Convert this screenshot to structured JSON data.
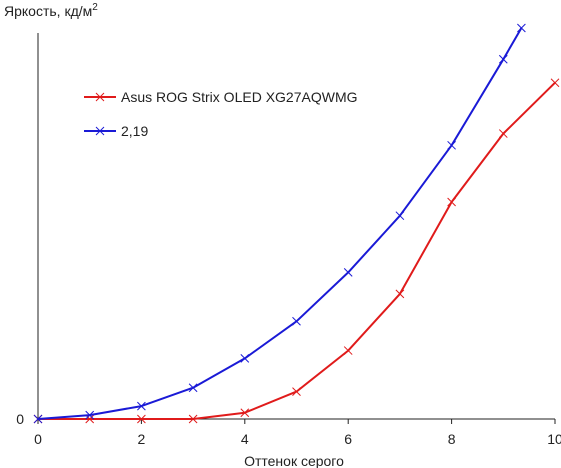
{
  "chart_data": {
    "type": "line",
    "title": "",
    "ylabel": "Яркость, кд/м",
    "ylabel_sup": "2",
    "xlabel": "Оттенок серого",
    "xlim": [
      0,
      10
    ],
    "ylim": [
      0,
      100
    ],
    "xticks": [
      "0",
      "2",
      "4",
      "6",
      "8",
      "10"
    ],
    "yticks": [
      "0"
    ],
    "grid": false,
    "legend_position": "top-left",
    "series": [
      {
        "name": "Asus ROG Strix OLED XG27AQWMG",
        "color": "#e01b1b",
        "x": [
          0,
          1,
          2,
          3,
          4,
          5,
          6,
          7,
          8,
          9,
          10
        ],
        "y": [
          0,
          0,
          0,
          0,
          1.6,
          7,
          17.5,
          32,
          55.5,
          73,
          86
        ]
      },
      {
        "name": "2,19",
        "color": "#1a1ad6",
        "x": [
          0,
          1,
          2,
          3,
          4,
          5,
          6,
          7,
          8,
          9,
          9.35
        ],
        "y": [
          0,
          1,
          3.3,
          8,
          15.5,
          25,
          37.5,
          52,
          70,
          92,
          100
        ]
      }
    ]
  }
}
